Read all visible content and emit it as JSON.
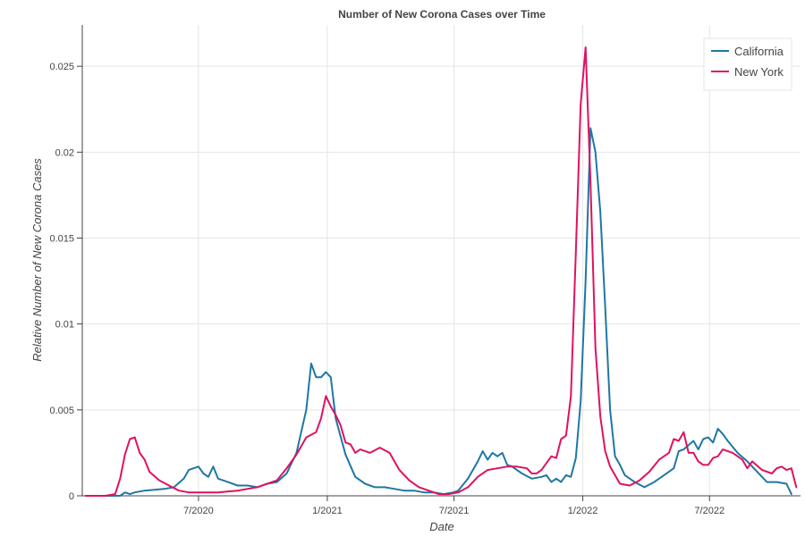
{
  "chart_data": {
    "type": "line",
    "title": "Number of New Corona Cases over Time",
    "xlabel": "Date",
    "ylabel": "Relative Number of New Corona Cases",
    "xlim": [
      "2020-01-17",
      "2022-11-08"
    ],
    "ylim": [
      0,
      0.0274
    ],
    "x_ticks": [
      {
        "date": "2020-07-01",
        "label": "7/2020"
      },
      {
        "date": "2021-01-01",
        "label": "1/2021"
      },
      {
        "date": "2021-07-01",
        "label": "7/2021"
      },
      {
        "date": "2022-01-01",
        "label": "1/2022"
      },
      {
        "date": "2022-07-01",
        "label": "7/2022"
      }
    ],
    "y_ticks": [
      {
        "value": 0,
        "label": "0"
      },
      {
        "value": 0.005,
        "label": "0.005"
      },
      {
        "value": 0.01,
        "label": "0.01"
      },
      {
        "value": 0.015,
        "label": "0.015"
      },
      {
        "value": 0.02,
        "label": "0.02"
      },
      {
        "value": 0.025,
        "label": "0.025"
      }
    ],
    "grid": true,
    "legend_position": "top-right",
    "series": [
      {
        "name": "California",
        "color": "#1f77a4",
        "points": [
          [
            "2020-01-22",
            0
          ],
          [
            "2020-02-26",
            0
          ],
          [
            "2020-03-11",
            0
          ],
          [
            "2020-03-18",
            0.0002
          ],
          [
            "2020-03-25",
            0.0001
          ],
          [
            "2020-04-01",
            0.0002
          ],
          [
            "2020-04-15",
            0.0003
          ],
          [
            "2020-05-13",
            0.0004
          ],
          [
            "2020-05-27",
            0.0005
          ],
          [
            "2020-06-10",
            0.001
          ],
          [
            "2020-06-17",
            0.0015
          ],
          [
            "2020-07-01",
            0.0017
          ],
          [
            "2020-07-08",
            0.0013
          ],
          [
            "2020-07-15",
            0.0011
          ],
          [
            "2020-07-22",
            0.0017
          ],
          [
            "2020-07-29",
            0.001
          ],
          [
            "2020-08-12",
            0.0008
          ],
          [
            "2020-08-26",
            0.0006
          ],
          [
            "2020-09-09",
            0.0006
          ],
          [
            "2020-09-23",
            0.0005
          ],
          [
            "2020-10-07",
            0.0007
          ],
          [
            "2020-10-21",
            0.0008
          ],
          [
            "2020-11-04",
            0.0013
          ],
          [
            "2020-11-18",
            0.0025
          ],
          [
            "2020-12-02",
            0.005
          ],
          [
            "2020-12-09",
            0.0077
          ],
          [
            "2020-12-16",
            0.0069
          ],
          [
            "2020-12-23",
            0.0069
          ],
          [
            "2020-12-30",
            0.0072
          ],
          [
            "2021-01-06",
            0.0069
          ],
          [
            "2021-01-13",
            0.0045
          ],
          [
            "2021-01-27",
            0.0024
          ],
          [
            "2021-02-10",
            0.0011
          ],
          [
            "2021-02-24",
            0.0007
          ],
          [
            "2021-03-10",
            0.0005
          ],
          [
            "2021-03-24",
            0.0005
          ],
          [
            "2021-04-07",
            0.0004
          ],
          [
            "2021-04-21",
            0.0003
          ],
          [
            "2021-05-05",
            0.0003
          ],
          [
            "2021-05-19",
            0.0002
          ],
          [
            "2021-06-02",
            0.0002
          ],
          [
            "2021-06-16",
            0.0001
          ],
          [
            "2021-06-30",
            0.0002
          ],
          [
            "2021-07-07",
            0.0003
          ],
          [
            "2021-07-21",
            0.001
          ],
          [
            "2021-08-04",
            0.002
          ],
          [
            "2021-08-11",
            0.0026
          ],
          [
            "2021-08-18",
            0.0021
          ],
          [
            "2021-08-25",
            0.0025
          ],
          [
            "2021-09-01",
            0.0023
          ],
          [
            "2021-09-08",
            0.0025
          ],
          [
            "2021-09-15",
            0.0018
          ],
          [
            "2021-09-22",
            0.0017
          ],
          [
            "2021-10-06",
            0.0013
          ],
          [
            "2021-10-20",
            0.001
          ],
          [
            "2021-11-03",
            0.0011
          ],
          [
            "2021-11-10",
            0.0012
          ],
          [
            "2021-11-17",
            0.0008
          ],
          [
            "2021-11-24",
            0.001
          ],
          [
            "2021-12-01",
            0.0008
          ],
          [
            "2021-12-08",
            0.0012
          ],
          [
            "2021-12-15",
            0.0011
          ],
          [
            "2021-12-22",
            0.0022
          ],
          [
            "2021-12-29",
            0.0055
          ],
          [
            "2022-01-05",
            0.0125
          ],
          [
            "2022-01-12",
            0.0214
          ],
          [
            "2022-01-19",
            0.02
          ],
          [
            "2022-01-26",
            0.0165
          ],
          [
            "2022-02-02",
            0.011
          ],
          [
            "2022-02-09",
            0.005
          ],
          [
            "2022-02-16",
            0.0023
          ],
          [
            "2022-02-23",
            0.0018
          ],
          [
            "2022-03-02",
            0.0012
          ],
          [
            "2022-03-16",
            0.0008
          ],
          [
            "2022-03-30",
            0.0005
          ],
          [
            "2022-04-13",
            0.0008
          ],
          [
            "2022-04-27",
            0.0012
          ],
          [
            "2022-05-11",
            0.0016
          ],
          [
            "2022-05-18",
            0.0026
          ],
          [
            "2022-05-25",
            0.0027
          ],
          [
            "2022-06-08",
            0.0032
          ],
          [
            "2022-06-15",
            0.0027
          ],
          [
            "2022-06-22",
            0.0033
          ],
          [
            "2022-06-29",
            0.0034
          ],
          [
            "2022-07-06",
            0.0031
          ],
          [
            "2022-07-13",
            0.0039
          ],
          [
            "2022-07-20",
            0.0036
          ],
          [
            "2022-07-27",
            0.0032
          ],
          [
            "2022-08-10",
            0.0025
          ],
          [
            "2022-08-24",
            0.002
          ],
          [
            "2022-09-07",
            0.0014
          ],
          [
            "2022-09-21",
            0.0008
          ],
          [
            "2022-10-05",
            0.0008
          ],
          [
            "2022-10-19",
            0.0007
          ],
          [
            "2022-10-26",
            0.0001
          ]
        ]
      },
      {
        "name": "New York",
        "color": "#e0115f",
        "points": [
          [
            "2020-01-22",
            0
          ],
          [
            "2020-02-19",
            0
          ],
          [
            "2020-03-04",
            0.0001
          ],
          [
            "2020-03-11",
            0.001
          ],
          [
            "2020-03-18",
            0.0024
          ],
          [
            "2020-03-25",
            0.0033
          ],
          [
            "2020-04-01",
            0.0034
          ],
          [
            "2020-04-08",
            0.0025
          ],
          [
            "2020-04-15",
            0.0021
          ],
          [
            "2020-04-22",
            0.0014
          ],
          [
            "2020-05-06",
            0.0009
          ],
          [
            "2020-05-20",
            0.0006
          ],
          [
            "2020-06-03",
            0.0003
          ],
          [
            "2020-06-17",
            0.0002
          ],
          [
            "2020-07-01",
            0.0002
          ],
          [
            "2020-07-29",
            0.0002
          ],
          [
            "2020-08-26",
            0.0003
          ],
          [
            "2020-09-23",
            0.0005
          ],
          [
            "2020-10-21",
            0.0009
          ],
          [
            "2020-11-04",
            0.0016
          ],
          [
            "2020-11-18",
            0.0024
          ],
          [
            "2020-12-02",
            0.0034
          ],
          [
            "2020-12-16",
            0.0037
          ],
          [
            "2020-12-23",
            0.0045
          ],
          [
            "2020-12-30",
            0.0058
          ],
          [
            "2021-01-06",
            0.0052
          ],
          [
            "2021-01-13",
            0.0047
          ],
          [
            "2021-01-20",
            0.0041
          ],
          [
            "2021-01-27",
            0.0031
          ],
          [
            "2021-02-03",
            0.003
          ],
          [
            "2021-02-10",
            0.0025
          ],
          [
            "2021-02-17",
            0.0027
          ],
          [
            "2021-03-03",
            0.0025
          ],
          [
            "2021-03-17",
            0.0028
          ],
          [
            "2021-03-31",
            0.0025
          ],
          [
            "2021-04-14",
            0.0015
          ],
          [
            "2021-04-28",
            0.0009
          ],
          [
            "2021-05-12",
            0.0005
          ],
          [
            "2021-05-26",
            0.0003
          ],
          [
            "2021-06-09",
            0.0001
          ],
          [
            "2021-06-23",
            0.0001
          ],
          [
            "2021-07-07",
            0.0002
          ],
          [
            "2021-07-21",
            0.0005
          ],
          [
            "2021-08-04",
            0.0011
          ],
          [
            "2021-08-18",
            0.0015
          ],
          [
            "2021-09-01",
            0.0016
          ],
          [
            "2021-09-15",
            0.0017
          ],
          [
            "2021-09-29",
            0.0017
          ],
          [
            "2021-10-13",
            0.0016
          ],
          [
            "2021-10-20",
            0.0013
          ],
          [
            "2021-10-27",
            0.0013
          ],
          [
            "2021-11-03",
            0.0015
          ],
          [
            "2021-11-17",
            0.0023
          ],
          [
            "2021-11-24",
            0.0022
          ],
          [
            "2021-12-01",
            0.0033
          ],
          [
            "2021-12-08",
            0.0035
          ],
          [
            "2021-12-15",
            0.0058
          ],
          [
            "2021-12-22",
            0.0142
          ],
          [
            "2021-12-29",
            0.0228
          ],
          [
            "2022-01-05",
            0.0261
          ],
          [
            "2022-01-12",
            0.0182
          ],
          [
            "2022-01-19",
            0.0086
          ],
          [
            "2022-01-26",
            0.0046
          ],
          [
            "2022-02-02",
            0.0026
          ],
          [
            "2022-02-09",
            0.0017
          ],
          [
            "2022-02-16",
            0.0012
          ],
          [
            "2022-02-23",
            0.0007
          ],
          [
            "2022-03-09",
            0.0006
          ],
          [
            "2022-03-23",
            0.0009
          ],
          [
            "2022-04-06",
            0.0014
          ],
          [
            "2022-04-20",
            0.0021
          ],
          [
            "2022-05-04",
            0.0025
          ],
          [
            "2022-05-11",
            0.0033
          ],
          [
            "2022-05-18",
            0.0032
          ],
          [
            "2022-05-25",
            0.0037
          ],
          [
            "2022-06-01",
            0.0025
          ],
          [
            "2022-06-08",
            0.0025
          ],
          [
            "2022-06-15",
            0.002
          ],
          [
            "2022-06-22",
            0.0018
          ],
          [
            "2022-06-29",
            0.0018
          ],
          [
            "2022-07-06",
            0.0022
          ],
          [
            "2022-07-13",
            0.0023
          ],
          [
            "2022-07-20",
            0.0027
          ],
          [
            "2022-08-03",
            0.0025
          ],
          [
            "2022-08-17",
            0.0021
          ],
          [
            "2022-08-24",
            0.0016
          ],
          [
            "2022-08-31",
            0.002
          ],
          [
            "2022-09-14",
            0.0015
          ],
          [
            "2022-09-28",
            0.0013
          ],
          [
            "2022-10-05",
            0.0016
          ],
          [
            "2022-10-12",
            0.0017
          ],
          [
            "2022-10-19",
            0.0015
          ],
          [
            "2022-10-26",
            0.0016
          ],
          [
            "2022-11-02",
            0.0005
          ]
        ]
      }
    ]
  }
}
